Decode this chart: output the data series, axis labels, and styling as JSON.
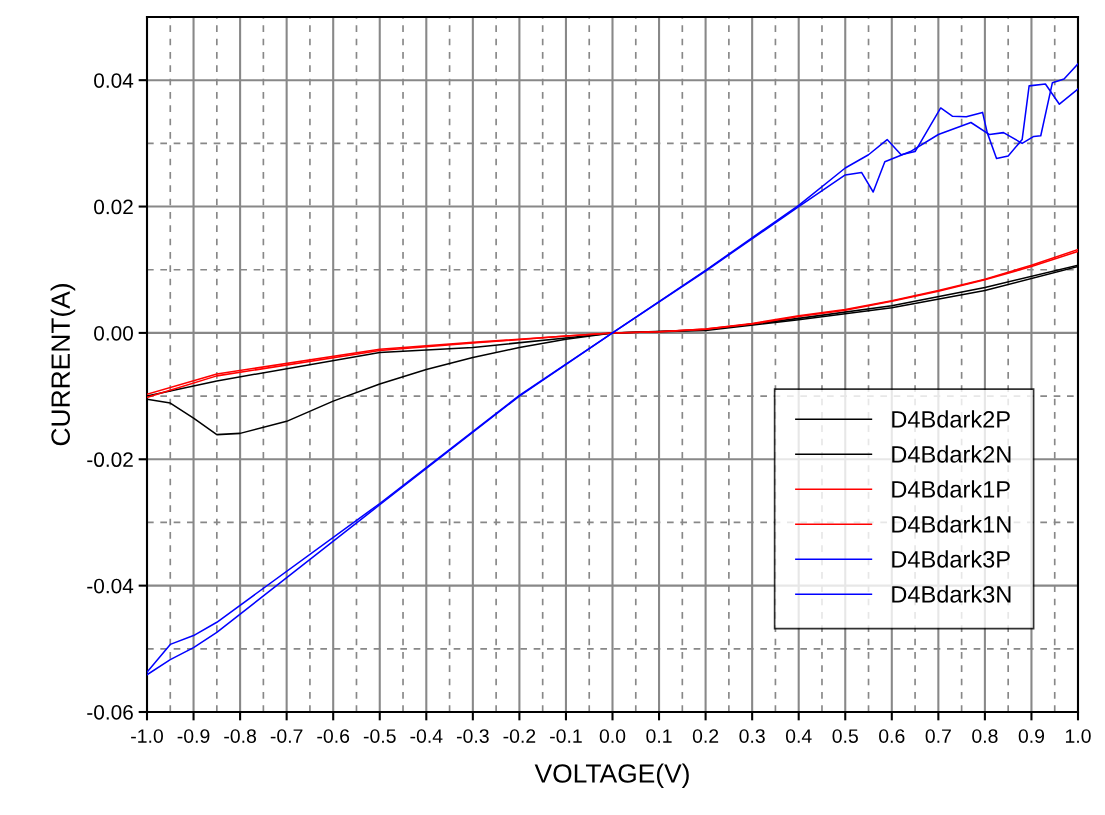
{
  "chart_data": {
    "type": "line",
    "xlabel": "VOLTAGE(V)",
    "ylabel": "CURRENT(A)",
    "xlim": [
      -1.0,
      1.0
    ],
    "ylim": [
      -0.06,
      0.05
    ],
    "xticks": [
      {
        "value": -1.0,
        "label": "-1.0"
      },
      {
        "value": -0.9,
        "label": "-0.9"
      },
      {
        "value": -0.8,
        "label": "-0.8"
      },
      {
        "value": -0.7,
        "label": "-0.7"
      },
      {
        "value": -0.6,
        "label": "-0.6"
      },
      {
        "value": -0.5,
        "label": "-0.5"
      },
      {
        "value": -0.4,
        "label": "-0.4"
      },
      {
        "value": -0.3,
        "label": "-0.3"
      },
      {
        "value": -0.2,
        "label": "-0.2"
      },
      {
        "value": -0.1,
        "label": "-0.1"
      },
      {
        "value": 0,
        "label": "0.0"
      },
      {
        "value": 0.1,
        "label": "0.1"
      },
      {
        "value": 0.2,
        "label": "0.2"
      },
      {
        "value": 0.3,
        "label": "0.3"
      },
      {
        "value": 0.4,
        "label": "0.4"
      },
      {
        "value": 0.5,
        "label": "0.5"
      },
      {
        "value": 0.6,
        "label": "0.6"
      },
      {
        "value": 0.7,
        "label": "0.7"
      },
      {
        "value": 0.8,
        "label": "0.8"
      },
      {
        "value": 0.9,
        "label": "0.9"
      },
      {
        "value": 1.0,
        "label": "1.0"
      }
    ],
    "yticks": [
      {
        "value": -0.06,
        "label": "-0.06"
      },
      {
        "value": -0.04,
        "label": "-0.04"
      },
      {
        "value": -0.02,
        "label": "-0.02"
      },
      {
        "value": 0,
        "label": "0.00"
      },
      {
        "value": 0.02,
        "label": "0.02"
      },
      {
        "value": 0.04,
        "label": "0.04"
      }
    ],
    "grid": true,
    "legend": "bottom right",
    "marker": "none",
    "line_style": "solid",
    "series": [
      {
        "name": "D4Bdark2P",
        "color": "#000000",
        "x": [
          -1.0,
          -0.85,
          -0.5,
          -0.3,
          -0.1,
          0,
          0.2,
          0.4,
          0.6,
          0.8,
          1.0
        ],
        "values": [
          -0.01,
          -0.0076,
          -0.0031,
          -0.0023,
          -0.0008,
          0,
          0.0005,
          0.0023,
          0.0043,
          0.0072,
          0.0107
        ]
      },
      {
        "name": "D4Bdark2N",
        "color": "#000000",
        "x": [
          -1.0,
          -0.95,
          -0.9,
          -0.85,
          -0.8,
          -0.7,
          -0.6,
          -0.5,
          -0.4,
          -0.3,
          -0.2,
          -0.1,
          0,
          0.2,
          0.4,
          0.6,
          0.8,
          1.0
        ],
        "values": [
          -0.0105,
          -0.0111,
          -0.0135,
          -0.0161,
          -0.0159,
          -0.014,
          -0.0108,
          -0.0081,
          -0.0058,
          -0.0039,
          -0.0023,
          -0.001,
          0,
          0.0004,
          0.0021,
          0.004,
          0.0067,
          0.0105
        ]
      },
      {
        "name": "D4Bdark1P",
        "color": "#ff0000",
        "x": [
          -1.0,
          -0.85,
          -0.5,
          -0.3,
          -0.1,
          0,
          0.1,
          0.2,
          0.3,
          0.4,
          0.5,
          0.6,
          0.7,
          0.8,
          0.9,
          1.0
        ],
        "values": [
          -0.0097,
          -0.0065,
          -0.0026,
          -0.0015,
          -0.0005,
          0,
          0.0002,
          0.0006,
          0.0015,
          0.0027,
          0.0037,
          0.0051,
          0.0067,
          0.0085,
          0.0107,
          0.0132
        ]
      },
      {
        "name": "D4Bdark1N",
        "color": "#ff0000",
        "x": [
          -1.0,
          -0.85,
          -0.5,
          -0.3,
          -0.1,
          0,
          0.1,
          0.2,
          0.3,
          0.4,
          0.5,
          0.6,
          0.7,
          0.8,
          0.9,
          1.0
        ],
        "values": [
          -0.0102,
          -0.0068,
          -0.0028,
          -0.0016,
          -0.0005,
          0,
          0.0002,
          0.0006,
          0.0014,
          0.0026,
          0.0036,
          0.005,
          0.0066,
          0.0084,
          0.0105,
          0.0129
        ]
      },
      {
        "name": "D4Bdark3P",
        "color": "#0000ff",
        "x": [
          -1.0,
          -0.95,
          -0.9,
          -0.85,
          -0.5,
          -0.2,
          0,
          0.2,
          0.4,
          0.5,
          0.55,
          0.59,
          0.62,
          0.65,
          0.705,
          0.73,
          0.76,
          0.795,
          0.805,
          0.825,
          0.85,
          0.88,
          0.895,
          0.93,
          0.96,
          1.0
        ],
        "values": [
          -0.0537,
          -0.0493,
          -0.0479,
          -0.0458,
          -0.027,
          -0.0099,
          0,
          0.0099,
          0.0202,
          0.0261,
          0.0282,
          0.0306,
          0.0282,
          0.0287,
          0.0356,
          0.0343,
          0.0342,
          0.0349,
          0.0317,
          0.0276,
          0.028,
          0.0306,
          0.0391,
          0.0394,
          0.0362,
          0.0386
        ]
      },
      {
        "name": "D4Bdark3N",
        "color": "#0000ff",
        "x": [
          -1.0,
          -0.95,
          -0.9,
          -0.85,
          -0.5,
          -0.2,
          0,
          0.2,
          0.4,
          0.5,
          0.535,
          0.56,
          0.585,
          0.64,
          0.7,
          0.77,
          0.81,
          0.84,
          0.88,
          0.905,
          0.92,
          0.945,
          0.97,
          1.0
        ],
        "values": [
          -0.0541,
          -0.0517,
          -0.0498,
          -0.0474,
          -0.0272,
          -0.01,
          0,
          0.0098,
          0.02,
          0.025,
          0.0254,
          0.0223,
          0.0271,
          0.0287,
          0.0314,
          0.0333,
          0.0314,
          0.0317,
          0.03,
          0.0311,
          0.0312,
          0.0396,
          0.0402,
          0.0426
        ]
      }
    ]
  }
}
